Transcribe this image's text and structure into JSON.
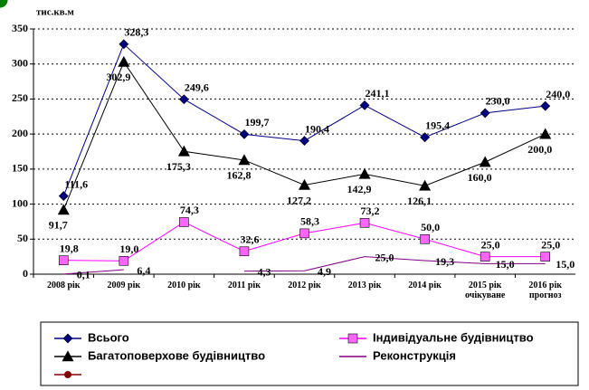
{
  "chart_data": {
    "type": "line",
    "y_label": "тис.кв.м",
    "categories": [
      "2008 рік",
      "2009 рік",
      "2010 рік",
      "2011 рік",
      "2012 рік",
      "2013 рік",
      "2014 рік",
      "2015 рік\nочікуване",
      "2016 рік\nпрогноз"
    ],
    "ylim": [
      0,
      350
    ],
    "yticks": [
      0,
      50,
      100,
      150,
      200,
      250,
      300,
      350
    ],
    "grid": true,
    "series": [
      {
        "name": "Всього",
        "color": "#000080",
        "marker": "diamond",
        "marker_color": "#000080",
        "values": [
          111.6,
          328.3,
          249.6,
          199.7,
          190.4,
          241.1,
          195.4,
          230.0,
          240.0
        ],
        "value_labels": [
          "111,6",
          "328,3",
          "249,6",
          "199,7",
          "190,4",
          "241,1",
          "195,4",
          "230,0",
          "240,0"
        ]
      },
      {
        "name": "Індивідуальне будівництво",
        "color": "#ff00ff",
        "marker": "square",
        "marker_color": "#ff66ff",
        "values": [
          19.8,
          19.0,
          74.3,
          32.6,
          58.3,
          73.2,
          50.0,
          25.0,
          25.0
        ],
        "value_labels": [
          "19,8",
          "19,0",
          "74,3",
          "32,6",
          "58,3",
          "73,2",
          "50,0",
          "25,0",
          "25,0"
        ]
      },
      {
        "name": "Багатоповерхове будівництво",
        "color": "#000000",
        "marker": "triangle",
        "marker_color": "#000000",
        "values": [
          91.7,
          302.9,
          175.3,
          162.8,
          127.2,
          142.9,
          126.1,
          160.0,
          200.0
        ],
        "value_labels": [
          "91,7",
          "302,9",
          "175,3",
          "162,8",
          "127,2",
          "142,9",
          "126,1",
          "160,0",
          "200,0"
        ]
      },
      {
        "name": "Реконструкція",
        "color": "#800080",
        "marker": "circle",
        "marker_color": "#008000",
        "values": [
          0.1,
          6.4,
          null,
          4.3,
          4.9,
          25.0,
          19.3,
          15.0,
          15.0
        ],
        "value_labels": [
          "0,1",
          "6,4",
          null,
          "4,3",
          "4,9",
          "25,0",
          "19,3",
          "15,0",
          "15,0"
        ]
      }
    ]
  }
}
